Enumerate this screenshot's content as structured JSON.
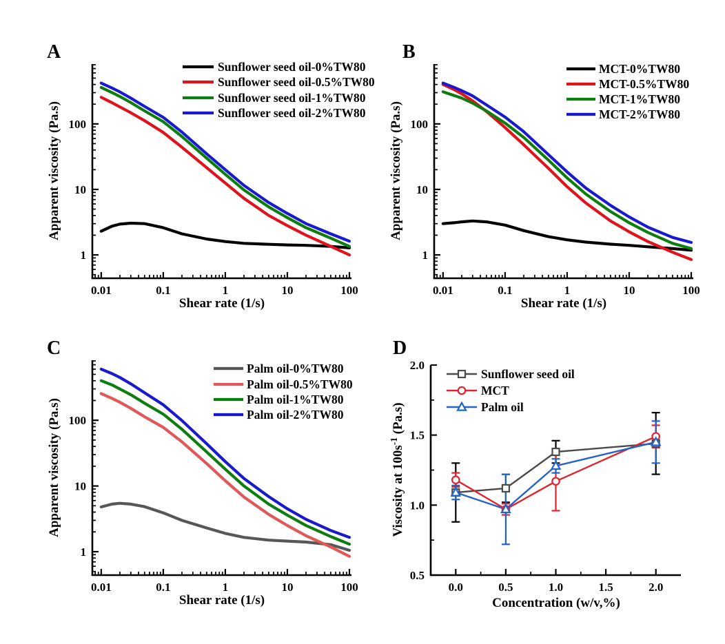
{
  "figure": {
    "background": "#ffffff",
    "text_color": "#000000",
    "description": "Four-panel rheology figure: apparent viscosity vs shear rate for three oils with TW80, and viscosity at 100/s vs concentration"
  },
  "chart_data": [
    {
      "id": "A",
      "panel_label": "A",
      "type": "line",
      "xlabel": "Shear rate (1/s)",
      "ylabel": "Apparent viscosity (Pa.s)",
      "xscale": "log",
      "yscale": "log",
      "xlim": [
        0.0072,
        108
      ],
      "ylim": [
        0.44,
        820
      ],
      "xticks": [
        0.01,
        0.1,
        1,
        10,
        100
      ],
      "xtick_labels": [
        "0.01",
        "0.1",
        "1",
        "10",
        "100"
      ],
      "yticks": [
        1,
        10,
        100
      ],
      "ytick_labels": [
        "1",
        "10",
        "100"
      ],
      "legend_position": "top-right",
      "grid": false,
      "x": [
        0.01,
        0.015,
        0.02,
        0.03,
        0.05,
        0.1,
        0.2,
        0.5,
        1,
        2,
        5,
        10,
        20,
        50,
        100
      ],
      "series": [
        {
          "name": "Sunflower seed oil-0%TW80",
          "color": "#000000",
          "values": [
            2.3,
            2.75,
            2.95,
            3.05,
            3.0,
            2.6,
            2.1,
            1.75,
            1.6,
            1.5,
            1.45,
            1.42,
            1.4,
            1.35,
            1.28
          ]
        },
        {
          "name": "Sunflower seed oil-0.5%TW80",
          "color": "#e0121b",
          "values": [
            255,
            210,
            182,
            148,
            112,
            74,
            44,
            21.5,
            12.5,
            7.3,
            4.0,
            2.8,
            2.0,
            1.35,
            1.0
          ]
        },
        {
          "name": "Sunflower seed oil-1%TW80",
          "color": "#0e7d10",
          "values": [
            360,
            300,
            262,
            212,
            158,
            108,
            64,
            30,
            17,
            9.8,
            5.4,
            3.7,
            2.6,
            1.8,
            1.35
          ]
        },
        {
          "name": "Sunflower seed oil-2%TW80",
          "color": "#1a1acd",
          "values": [
            420,
            352,
            308,
            248,
            185,
            126,
            75,
            35,
            20,
            11.5,
            6.3,
            4.3,
            3.0,
            2.1,
            1.62
          ]
        }
      ]
    },
    {
      "id": "B",
      "panel_label": "B",
      "type": "line",
      "xlabel": "Shear rate (1/s)",
      "ylabel": "Apparent viscosity (Pa.s)",
      "xscale": "log",
      "yscale": "log",
      "xlim": [
        0.0072,
        108
      ],
      "ylim": [
        0.44,
        820
      ],
      "xticks": [
        0.01,
        0.1,
        1,
        10,
        100
      ],
      "xtick_labels": [
        "0.01",
        "0.1",
        "1",
        "10",
        "100"
      ],
      "yticks": [
        1,
        10,
        100
      ],
      "ytick_labels": [
        "1",
        "10",
        "100"
      ],
      "legend_position": "top-right",
      "grid": false,
      "x": [
        0.01,
        0.015,
        0.02,
        0.03,
        0.05,
        0.1,
        0.2,
        0.5,
        1,
        2,
        5,
        10,
        20,
        50,
        100
      ],
      "series": [
        {
          "name": "MCT-0%TW80",
          "color": "#000000",
          "values": [
            3.0,
            3.1,
            3.2,
            3.3,
            3.2,
            2.85,
            2.35,
            1.9,
            1.7,
            1.57,
            1.46,
            1.4,
            1.33,
            1.25,
            1.18
          ]
        },
        {
          "name": "MCT-0.5%TW80",
          "color": "#e0121b",
          "values": [
            400,
            335,
            288,
            225,
            155,
            88,
            48,
            21,
            11,
            6.2,
            3.3,
            2.25,
            1.6,
            1.1,
            0.85
          ]
        },
        {
          "name": "MCT-1%TW80",
          "color": "#0e7d10",
          "values": [
            310,
            272,
            248,
            208,
            158,
            103,
            62,
            28,
            15,
            8.5,
            4.6,
            3.1,
            2.2,
            1.5,
            1.25
          ]
        },
        {
          "name": "MCT-2%TW80",
          "color": "#1a1acd",
          "values": [
            420,
            362,
            322,
            268,
            195,
            127,
            76,
            34,
            18.5,
            10.5,
            5.7,
            3.8,
            2.65,
            1.85,
            1.55
          ]
        }
      ]
    },
    {
      "id": "C",
      "panel_label": "C",
      "type": "line",
      "xlabel": "Shear rate (1/s)",
      "ylabel": "Apparent viscosity (Pa.s)",
      "xscale": "log",
      "yscale": "log",
      "xlim": [
        0.0072,
        108
      ],
      "ylim": [
        0.44,
        820
      ],
      "xticks": [
        0.01,
        0.1,
        1,
        10,
        100
      ],
      "xtick_labels": [
        "0.01",
        "0.1",
        "1",
        "10",
        "100"
      ],
      "yticks": [
        1,
        10,
        100
      ],
      "ytick_labels": [
        "1",
        "10",
        "100"
      ],
      "legend_position": "top-right",
      "grid": false,
      "x": [
        0.01,
        0.015,
        0.02,
        0.03,
        0.05,
        0.1,
        0.2,
        0.5,
        1,
        2,
        5,
        10,
        20,
        50,
        100
      ],
      "series": [
        {
          "name": "Palm oil-0%TW80",
          "color": "#575757",
          "values": [
            4.8,
            5.3,
            5.45,
            5.3,
            4.85,
            3.9,
            3.0,
            2.3,
            1.9,
            1.65,
            1.5,
            1.45,
            1.4,
            1.28,
            1.05
          ]
        },
        {
          "name": "Palm oil-0.5%TW80",
          "color": "#e25757",
          "values": [
            255,
            215,
            188,
            152,
            113,
            78,
            47,
            22,
            12,
            6.8,
            3.7,
            2.5,
            1.75,
            1.18,
            0.85
          ]
        },
        {
          "name": "Palm oil-1%TW80",
          "color": "#0e7d10",
          "values": [
            400,
            345,
            300,
            245,
            182,
            124,
            73,
            33,
            18,
            10,
            5.3,
            3.6,
            2.5,
            1.7,
            1.3
          ]
        },
        {
          "name": "Palm oil-2%TW80",
          "color": "#1a1acd",
          "values": [
            600,
            512,
            448,
            358,
            262,
            172,
            99,
            44,
            23.5,
            13,
            6.9,
            4.5,
            3.1,
            2.1,
            1.65
          ]
        }
      ]
    },
    {
      "id": "D",
      "panel_label": "D",
      "type": "line-errorbar",
      "xlabel": "Concentration (w/v,%)",
      "ylabel": "Viscosity at 100s⁻¹ (Pa.s)",
      "xscale": "linear",
      "yscale": "linear",
      "xlim": [
        -0.25,
        2.25
      ],
      "ylim": [
        0.5,
        2.0
      ],
      "xticks": [
        0,
        0.5,
        1,
        1.5,
        2
      ],
      "xtick_labels": [
        "0.0",
        "0.5",
        "1.0",
        "1.5",
        "2.0"
      ],
      "yticks": [
        0.5,
        1,
        1.5,
        2
      ],
      "ytick_labels": [
        "0.5",
        "1.0",
        "1.5",
        "2.0"
      ],
      "legend_position": "top-left",
      "grid": false,
      "x": [
        0,
        0.5,
        1,
        2
      ],
      "series": [
        {
          "name": "Sunflower seed oil",
          "color": "#4a4a4a",
          "marker": "square",
          "error_color": "#000000",
          "values": [
            1.09,
            1.12,
            1.38,
            1.44
          ],
          "errors": [
            0.21,
            0.1,
            0.08,
            0.22
          ]
        },
        {
          "name": "MCT",
          "color": "#e0242f",
          "marker": "circle",
          "values": [
            1.18,
            0.97,
            1.17,
            1.49
          ],
          "errors": [
            0.05,
            0.04,
            0.21,
            0.08
          ]
        },
        {
          "name": "Palm oil",
          "color": "#2263c8",
          "marker": "triangle",
          "values": [
            1.09,
            0.97,
            1.28,
            1.45
          ],
          "errors": [
            0.05,
            0.25,
            0.05,
            0.15
          ]
        }
      ]
    }
  ]
}
